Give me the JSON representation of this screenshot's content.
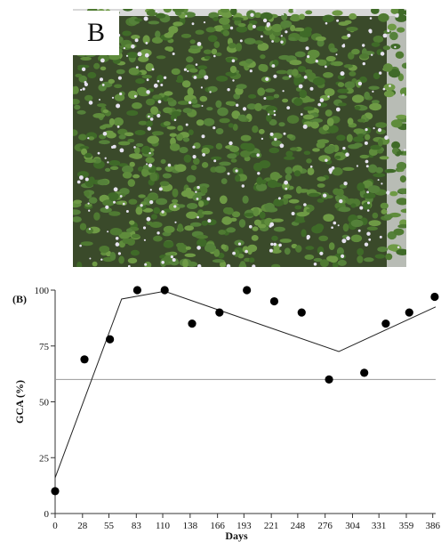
{
  "photo": {
    "label": "B",
    "bg_color": "#3a4a2a",
    "frame_color": "#d8d8d8",
    "leaf_colors": [
      "#4f7a32",
      "#5f8c3c",
      "#3f6a28",
      "#6e9a45",
      "#55813a"
    ],
    "flower_color": "#e6e2f0"
  },
  "chart_data": {
    "type": "scatter",
    "panel_label": "(B)",
    "xlabel": "Days",
    "ylabel": "GCA (%)",
    "xlim": [
      0,
      389
    ],
    "ylim": [
      0,
      100
    ],
    "xticks": [
      0,
      28,
      55,
      83,
      110,
      138,
      166,
      193,
      221,
      248,
      276,
      304,
      331,
      359,
      386
    ],
    "yticks": [
      0,
      25,
      50,
      75,
      100
    ],
    "points": {
      "x": [
        0,
        30,
        56,
        84,
        112,
        140,
        168,
        196,
        224,
        252,
        280,
        316,
        338,
        362,
        388
      ],
      "y": [
        10,
        69,
        78,
        100,
        100,
        85,
        90,
        100,
        95,
        90,
        60,
        63,
        85,
        90,
        97
      ]
    },
    "fit_line": {
      "x": [
        0,
        68,
        112,
        290,
        389
      ],
      "y": [
        16,
        96,
        99.5,
        72.5,
        92.5
      ]
    },
    "reference_line": 60,
    "colors": {
      "points": "#000000",
      "line": "#222222",
      "reference": "#999999"
    }
  }
}
